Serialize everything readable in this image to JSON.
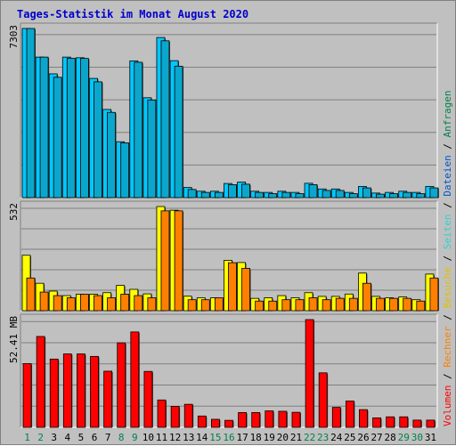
{
  "chart_data": {
    "type": "bar",
    "title": "Tages-Statistik im Monat August 2020",
    "days": [
      1,
      2,
      3,
      4,
      5,
      6,
      7,
      8,
      9,
      10,
      11,
      12,
      13,
      14,
      15,
      16,
      17,
      18,
      19,
      20,
      21,
      22,
      23,
      24,
      25,
      26,
      27,
      28,
      29,
      30,
      31
    ],
    "weekend_days": [
      1,
      2,
      8,
      9,
      15,
      16,
      22,
      23,
      29,
      30
    ],
    "colors": {
      "anfragen": "#00c8ff",
      "dateien": "#0ba6cc",
      "seiten": "#2fd1d1",
      "besuche": "#ffff00",
      "rechner": "#ff8000",
      "volumen": "#ff0000",
      "weekday_label": "#000000",
      "weekend_label": "#00804a",
      "title": "#0000cc"
    },
    "panels": [
      {
        "id": "hits",
        "max_label": "7303",
        "max": 7303,
        "series": [
          {
            "name": "Anfragen",
            "color": "#00c8ff",
            "values": [
              7303,
              6068,
              5344,
              6068,
              6040,
              5148,
              3807,
              2414,
              5905,
              4312,
              6914,
              5913,
              437,
              276,
              276,
              611,
              670,
              276,
              226,
              276,
              226,
              620,
              374,
              374,
              226,
              480,
              197,
              226,
              276,
              226,
              480
            ]
          },
          {
            "name": "Dateien",
            "color": "#0ba6cc",
            "values": [
              7303,
              6068,
              5197,
              6020,
              6010,
              5001,
              3680,
              2366,
              5845,
              4215,
              6772,
              5675,
              352,
              226,
              226,
              560,
              580,
              226,
              170,
              226,
              170,
              560,
              310,
              310,
              170,
              420,
              150,
              170,
              226,
              170,
              420
            ]
          }
        ]
      },
      {
        "id": "visits",
        "max_label": "532",
        "max": 532,
        "series": [
          {
            "name": "Besuche",
            "color": "#ffff00",
            "values": [
              283,
              140,
              100,
              77,
              84,
              84,
              92,
              129,
              109,
              86,
              532,
              513,
              74,
              66,
              66,
              257,
              246,
              63,
              66,
              77,
              66,
              92,
              73,
              73,
              85,
              192,
              73,
              66,
              70,
              56,
              187
            ]
          },
          {
            "name": "Rechner",
            "color": "#ff8000",
            "values": [
              167,
              95,
              77,
              66,
              84,
              77,
              66,
              84,
              77,
              66,
              510,
              510,
              56,
              56,
              66,
              245,
              216,
              49,
              49,
              56,
              56,
              66,
              56,
              63,
              63,
              140,
              63,
              63,
              63,
              49,
              167
            ]
          }
        ]
      },
      {
        "id": "volume",
        "max_label": "52.41 MB",
        "max": 52.41,
        "series": [
          {
            "name": "Volumen",
            "color": "#ff0000",
            "values": [
              31.0,
              44.2,
              33.2,
              35.7,
              35.7,
              34.5,
              27.3,
              41.1,
              46.4,
              27.2,
              13.3,
              10.2,
              11.2,
              5.5,
              3.9,
              3.4,
              7.2,
              7.2,
              8.0,
              7.8,
              7.3,
              52.41,
              26.5,
              9.7,
              12.8,
              8.6,
              4.6,
              5.1,
              5.1,
              3.5,
              3.5
            ]
          }
        ]
      }
    ],
    "legend": [
      {
        "text": "Volumen",
        "color": "#ff0000"
      },
      {
        "text": " / ",
        "color": "#000000"
      },
      {
        "text": "Rechner",
        "color": "#ff8000"
      },
      {
        "text": " / ",
        "color": "#000000"
      },
      {
        "text": "Besuche",
        "color": "#e0c000"
      },
      {
        "text": " / ",
        "color": "#000000"
      },
      {
        "text": "Seiten",
        "color": "#2fd1d1"
      },
      {
        "text": " / ",
        "color": "#000000"
      },
      {
        "text": "Dateien",
        "color": "#0055cc"
      },
      {
        "text": " / ",
        "color": "#000000"
      },
      {
        "text": "Anfragen",
        "color": "#00804a"
      }
    ]
  }
}
